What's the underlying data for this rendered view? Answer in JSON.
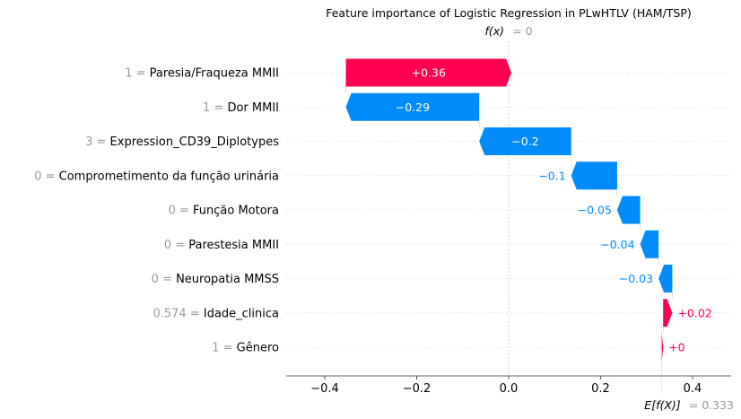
{
  "chart_data": {
    "type": "waterfall",
    "title": "Feature importance of Logistic Regression in PLwHTLV (HAM/TSP)",
    "fx_label": "f(x)",
    "fx_value": "= 0",
    "base_label": "E[f(X)]",
    "base_value_text": "= 0.333",
    "base_value": 0.333,
    "fx": 0,
    "xlim": [
      -0.48,
      0.48
    ],
    "xticks": [
      "-0.4",
      "-0.2",
      "0.0",
      "0.2",
      "0.4"
    ],
    "xtick_values": [
      -0.4,
      -0.2,
      0.0,
      0.2,
      0.4
    ],
    "colors": {
      "positive": "#ff0051",
      "negative": "#008bfb"
    },
    "features": [
      {
        "value": "1",
        "name": "Paresia/Fraqueza MMII",
        "contribution": 0.36,
        "label": "+0.36"
      },
      {
        "value": "1",
        "name": "Dor MMII",
        "contribution": -0.29,
        "label": "−0.29"
      },
      {
        "value": "3",
        "name": "Expression_CD39_Diplotypes",
        "contribution": -0.2,
        "label": "−0.2"
      },
      {
        "value": "0",
        "name": "Comprometimento da função urinária",
        "contribution": -0.1,
        "label": "−0.1"
      },
      {
        "value": "0",
        "name": "Função Motora",
        "contribution": -0.05,
        "label": "−0.05"
      },
      {
        "value": "0",
        "name": "Parestesia MMII",
        "contribution": -0.04,
        "label": "−0.04"
      },
      {
        "value": "0",
        "name": "Neuropatia MMSS",
        "contribution": -0.03,
        "label": "−0.03"
      },
      {
        "value": "0.574",
        "name": "Idade_clinica",
        "contribution": 0.02,
        "label": "+0.02"
      },
      {
        "value": "1",
        "name": "Gênero",
        "contribution": 0.003,
        "label": "+0"
      }
    ]
  }
}
